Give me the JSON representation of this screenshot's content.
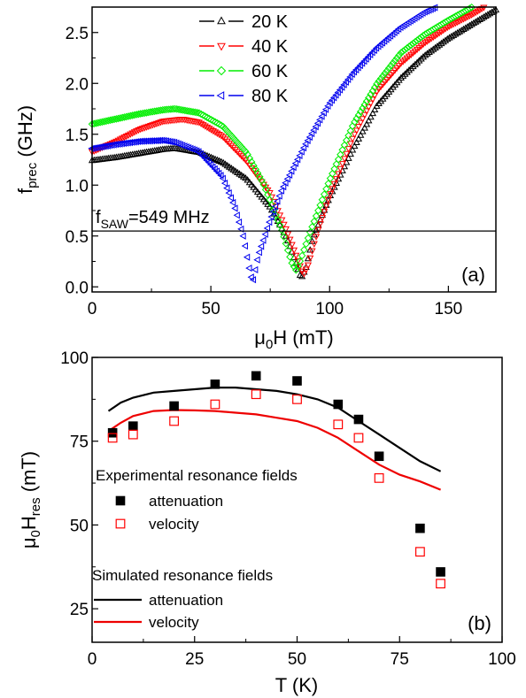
{
  "chart_data": [
    {
      "type": "scatter",
      "panel_label": "(a)",
      "xlabel": "μ0H (mT)",
      "ylabel": "fprec (GHz)",
      "xlim": [
        0,
        170
      ],
      "ylim": [
        -0.05,
        2.75
      ],
      "xticks": [
        "0",
        "50",
        "100",
        "150"
      ],
      "yticks": [
        "0.0",
        "0.5",
        "1.0",
        "1.5",
        "2.0",
        "2.5"
      ],
      "legend_position": "top-center",
      "reference_line": {
        "label": "fSAW=549 MHz",
        "label_main": "f",
        "label_sub": "SAW",
        "label_rest": "=549 MHz",
        "y": 0.549
      },
      "series": [
        {
          "name": "20 K",
          "color": "#000000",
          "marker": "triangle-up",
          "x": [
            0,
            10,
            20,
            30,
            35,
            45,
            55,
            65,
            75,
            82,
            86,
            88,
            90,
            93,
            100,
            110,
            120,
            130,
            140,
            150,
            160,
            170
          ],
          "y": [
            1.24,
            1.27,
            1.31,
            1.35,
            1.36,
            1.32,
            1.22,
            1.06,
            0.78,
            0.48,
            0.22,
            0.08,
            0.18,
            0.48,
            0.88,
            1.36,
            1.78,
            2.05,
            2.27,
            2.44,
            2.58,
            2.72
          ]
        },
        {
          "name": "40 K",
          "color": "#ff0000",
          "marker": "triangle-down",
          "x": [
            0,
            10,
            20,
            30,
            38,
            45,
            55,
            65,
            75,
            82,
            87,
            89,
            91,
            95,
            100,
            110,
            120,
            130,
            140,
            150,
            160,
            165
          ],
          "y": [
            1.33,
            1.43,
            1.55,
            1.63,
            1.65,
            1.62,
            1.48,
            1.24,
            0.92,
            0.55,
            0.24,
            0.12,
            0.22,
            0.55,
            0.9,
            1.48,
            1.93,
            2.2,
            2.4,
            2.56,
            2.68,
            2.75
          ]
        },
        {
          "name": "60 K",
          "color": "#00ee00",
          "marker": "diamond",
          "x": [
            0,
            10,
            20,
            30,
            35,
            45,
            55,
            65,
            72,
            80,
            84,
            86,
            88,
            92,
            100,
            110,
            120,
            130,
            140,
            150,
            160
          ],
          "y": [
            1.6,
            1.65,
            1.7,
            1.74,
            1.75,
            1.71,
            1.58,
            1.32,
            1.02,
            0.55,
            0.24,
            0.16,
            0.28,
            0.55,
            1.05,
            1.6,
            2.0,
            2.3,
            2.48,
            2.62,
            2.75
          ]
        },
        {
          "name": "80 K",
          "color": "#0000ee",
          "marker": "triangle-left",
          "x": [
            0,
            10,
            20,
            30,
            35,
            45,
            55,
            60,
            64,
            66,
            67,
            68,
            70,
            75,
            80,
            90,
            100,
            110,
            120,
            130,
            140,
            145
          ],
          "y": [
            1.36,
            1.4,
            1.43,
            1.44,
            1.42,
            1.33,
            1.08,
            0.8,
            0.48,
            0.22,
            0.1,
            0.07,
            0.3,
            0.65,
            0.95,
            1.4,
            1.8,
            2.1,
            2.35,
            2.55,
            2.7,
            2.75
          ]
        }
      ]
    },
    {
      "type": "scatter",
      "panel_label": "(b)",
      "xlabel": "T (K)",
      "ylabel": "μ0Hres (mT)",
      "xlim": [
        0,
        100
      ],
      "ylim": [
        15,
        100
      ],
      "xticks": [
        "0",
        "25",
        "50",
        "75",
        "100"
      ],
      "yticks": [
        "25",
        "50",
        "75",
        "100"
      ],
      "legend_experimental_title": "Experimental resonance fields",
      "legend_simulated_title": "Simulated resonance fields",
      "experimental": [
        {
          "name": "attenuation",
          "color": "#000000",
          "marker": "filled-square",
          "x": [
            5,
            10,
            20,
            30,
            40,
            50,
            60,
            65,
            70,
            80,
            85
          ],
          "y": [
            77.5,
            79.5,
            85.5,
            92,
            94.5,
            93,
            86,
            81.5,
            70.5,
            49,
            36
          ]
        },
        {
          "name": "velocity",
          "color": "#ff0000",
          "marker": "open-square",
          "x": [
            5,
            10,
            20,
            30,
            40,
            50,
            60,
            65,
            70,
            80,
            85
          ],
          "y": [
            76,
            77,
            81,
            86,
            89,
            87.5,
            80,
            76,
            64,
            42,
            32.5
          ]
        }
      ],
      "simulated": [
        {
          "name": "attenuation",
          "color": "#000000",
          "x": [
            4,
            7,
            10,
            15,
            20,
            25,
            30,
            35,
            40,
            45,
            50,
            55,
            60,
            65,
            70,
            75,
            80,
            85
          ],
          "y": [
            84,
            86.5,
            88,
            89.5,
            90,
            90.5,
            91,
            91,
            90.5,
            90,
            89,
            87.5,
            85,
            81,
            77,
            73,
            69,
            66
          ]
        },
        {
          "name": "velocity",
          "color": "#ee0000",
          "x": [
            4,
            7,
            10,
            15,
            20,
            25,
            30,
            35,
            40,
            45,
            50,
            55,
            60,
            65,
            70,
            75,
            80,
            85
          ],
          "y": [
            78,
            80.5,
            82.5,
            84,
            84.3,
            84.2,
            84,
            83.5,
            83,
            82,
            81,
            79,
            76,
            72,
            68,
            65,
            63,
            60.5
          ]
        }
      ]
    }
  ]
}
